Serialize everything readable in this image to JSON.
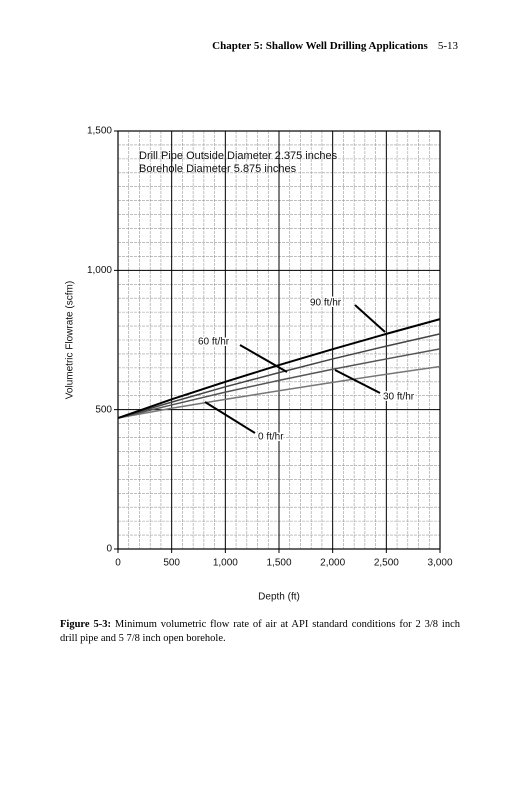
{
  "header": {
    "chapter": "Chapter 5: Shallow Well Drilling Applications",
    "page_number": "5-13"
  },
  "caption": {
    "label": "Figure 5-3:",
    "text": "Minimum volumetric flow rate of air at API standard conditions for 2 3/8 inch drill pipe and 5 7/8 inch open borehole."
  },
  "chart_data": {
    "type": "line",
    "xlabel": "Depth (ft)",
    "ylabel": "Volumetric Flowrate (scfm)",
    "annotations": [
      "Drill Pipe Outside Diameter 2.375 inches",
      "Borehole Diameter 5.875 inches"
    ],
    "x": [
      0,
      500,
      1000,
      1500,
      2000,
      2500,
      3000
    ],
    "series": [
      {
        "name": "0 ft/hr",
        "color": "#777777",
        "values": [
          470,
          505,
          537,
          568,
          598,
          627,
          655
        ]
      },
      {
        "name": "30 ft/hr",
        "color": "#555555",
        "values": [
          470,
          517,
          563,
          605,
          645,
          682,
          718
        ]
      },
      {
        "name": "60 ft/hr",
        "color": "#444444",
        "values": [
          470,
          527,
          582,
          633,
          682,
          728,
          772
        ]
      },
      {
        "name": "90 ft/hr",
        "color": "#000000",
        "values": [
          470,
          537,
          600,
          660,
          717,
          772,
          825
        ]
      }
    ],
    "xlim": [
      0,
      3000
    ],
    "xticks": [
      0,
      500,
      {
        "value": 1000,
        "label": "1,000"
      },
      {
        "value": 1500,
        "label": "1,500"
      },
      {
        "value": 2000,
        "label": "2,000"
      },
      {
        "value": 2500,
        "label": "2,500"
      },
      {
        "value": 3000,
        "label": "3,000"
      }
    ],
    "ylim": [
      0,
      1500
    ],
    "yticks": [
      0,
      500,
      {
        "value": 1000,
        "label": "1,000"
      },
      {
        "value": 1500,
        "label": "1,500"
      }
    ],
    "grid": true
  }
}
